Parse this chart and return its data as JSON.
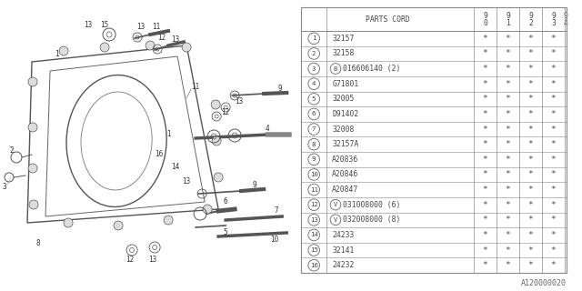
{
  "watermark": "A120000020",
  "bg_color": "#ffffff",
  "rows": [
    {
      "num": "1",
      "code": "32157",
      "special": null,
      "marks": [
        true,
        true,
        true,
        true,
        false
      ]
    },
    {
      "num": "2",
      "code": "32158",
      "special": null,
      "marks": [
        true,
        true,
        true,
        true,
        false
      ]
    },
    {
      "num": "3",
      "code": "016606140 (2)",
      "special": "B",
      "marks": [
        true,
        true,
        true,
        true,
        false
      ]
    },
    {
      "num": "4",
      "code": "G71801",
      "special": null,
      "marks": [
        true,
        true,
        true,
        true,
        false
      ]
    },
    {
      "num": "5",
      "code": "32005",
      "special": null,
      "marks": [
        true,
        true,
        true,
        true,
        false
      ]
    },
    {
      "num": "6",
      "code": "D91402",
      "special": null,
      "marks": [
        true,
        true,
        true,
        true,
        false
      ]
    },
    {
      "num": "7",
      "code": "32008",
      "special": null,
      "marks": [
        true,
        true,
        true,
        true,
        false
      ]
    },
    {
      "num": "8",
      "code": "32157A",
      "special": null,
      "marks": [
        true,
        true,
        true,
        true,
        false
      ]
    },
    {
      "num": "9",
      "code": "A20836",
      "special": null,
      "marks": [
        true,
        true,
        true,
        true,
        false
      ]
    },
    {
      "num": "10",
      "code": "A20846",
      "special": null,
      "marks": [
        true,
        true,
        true,
        true,
        false
      ]
    },
    {
      "num": "11",
      "code": "A20847",
      "special": null,
      "marks": [
        true,
        true,
        true,
        true,
        false
      ]
    },
    {
      "num": "12",
      "code": "031008000 (6)",
      "special": "V",
      "marks": [
        true,
        true,
        true,
        true,
        false
      ]
    },
    {
      "num": "13",
      "code": "032008000 (8)",
      "special": "V",
      "marks": [
        true,
        true,
        true,
        true,
        false
      ]
    },
    {
      "num": "14",
      "code": "24233",
      "special": null,
      "marks": [
        true,
        true,
        true,
        true,
        false
      ]
    },
    {
      "num": "15",
      "code": "32141",
      "special": null,
      "marks": [
        true,
        true,
        true,
        true,
        false
      ]
    },
    {
      "num": "16",
      "code": "24232",
      "special": null,
      "marks": [
        true,
        true,
        true,
        true,
        false
      ]
    }
  ],
  "line_color": "#888888",
  "text_color": "#444444",
  "font_size": 5.8,
  "header_font_size": 5.8
}
